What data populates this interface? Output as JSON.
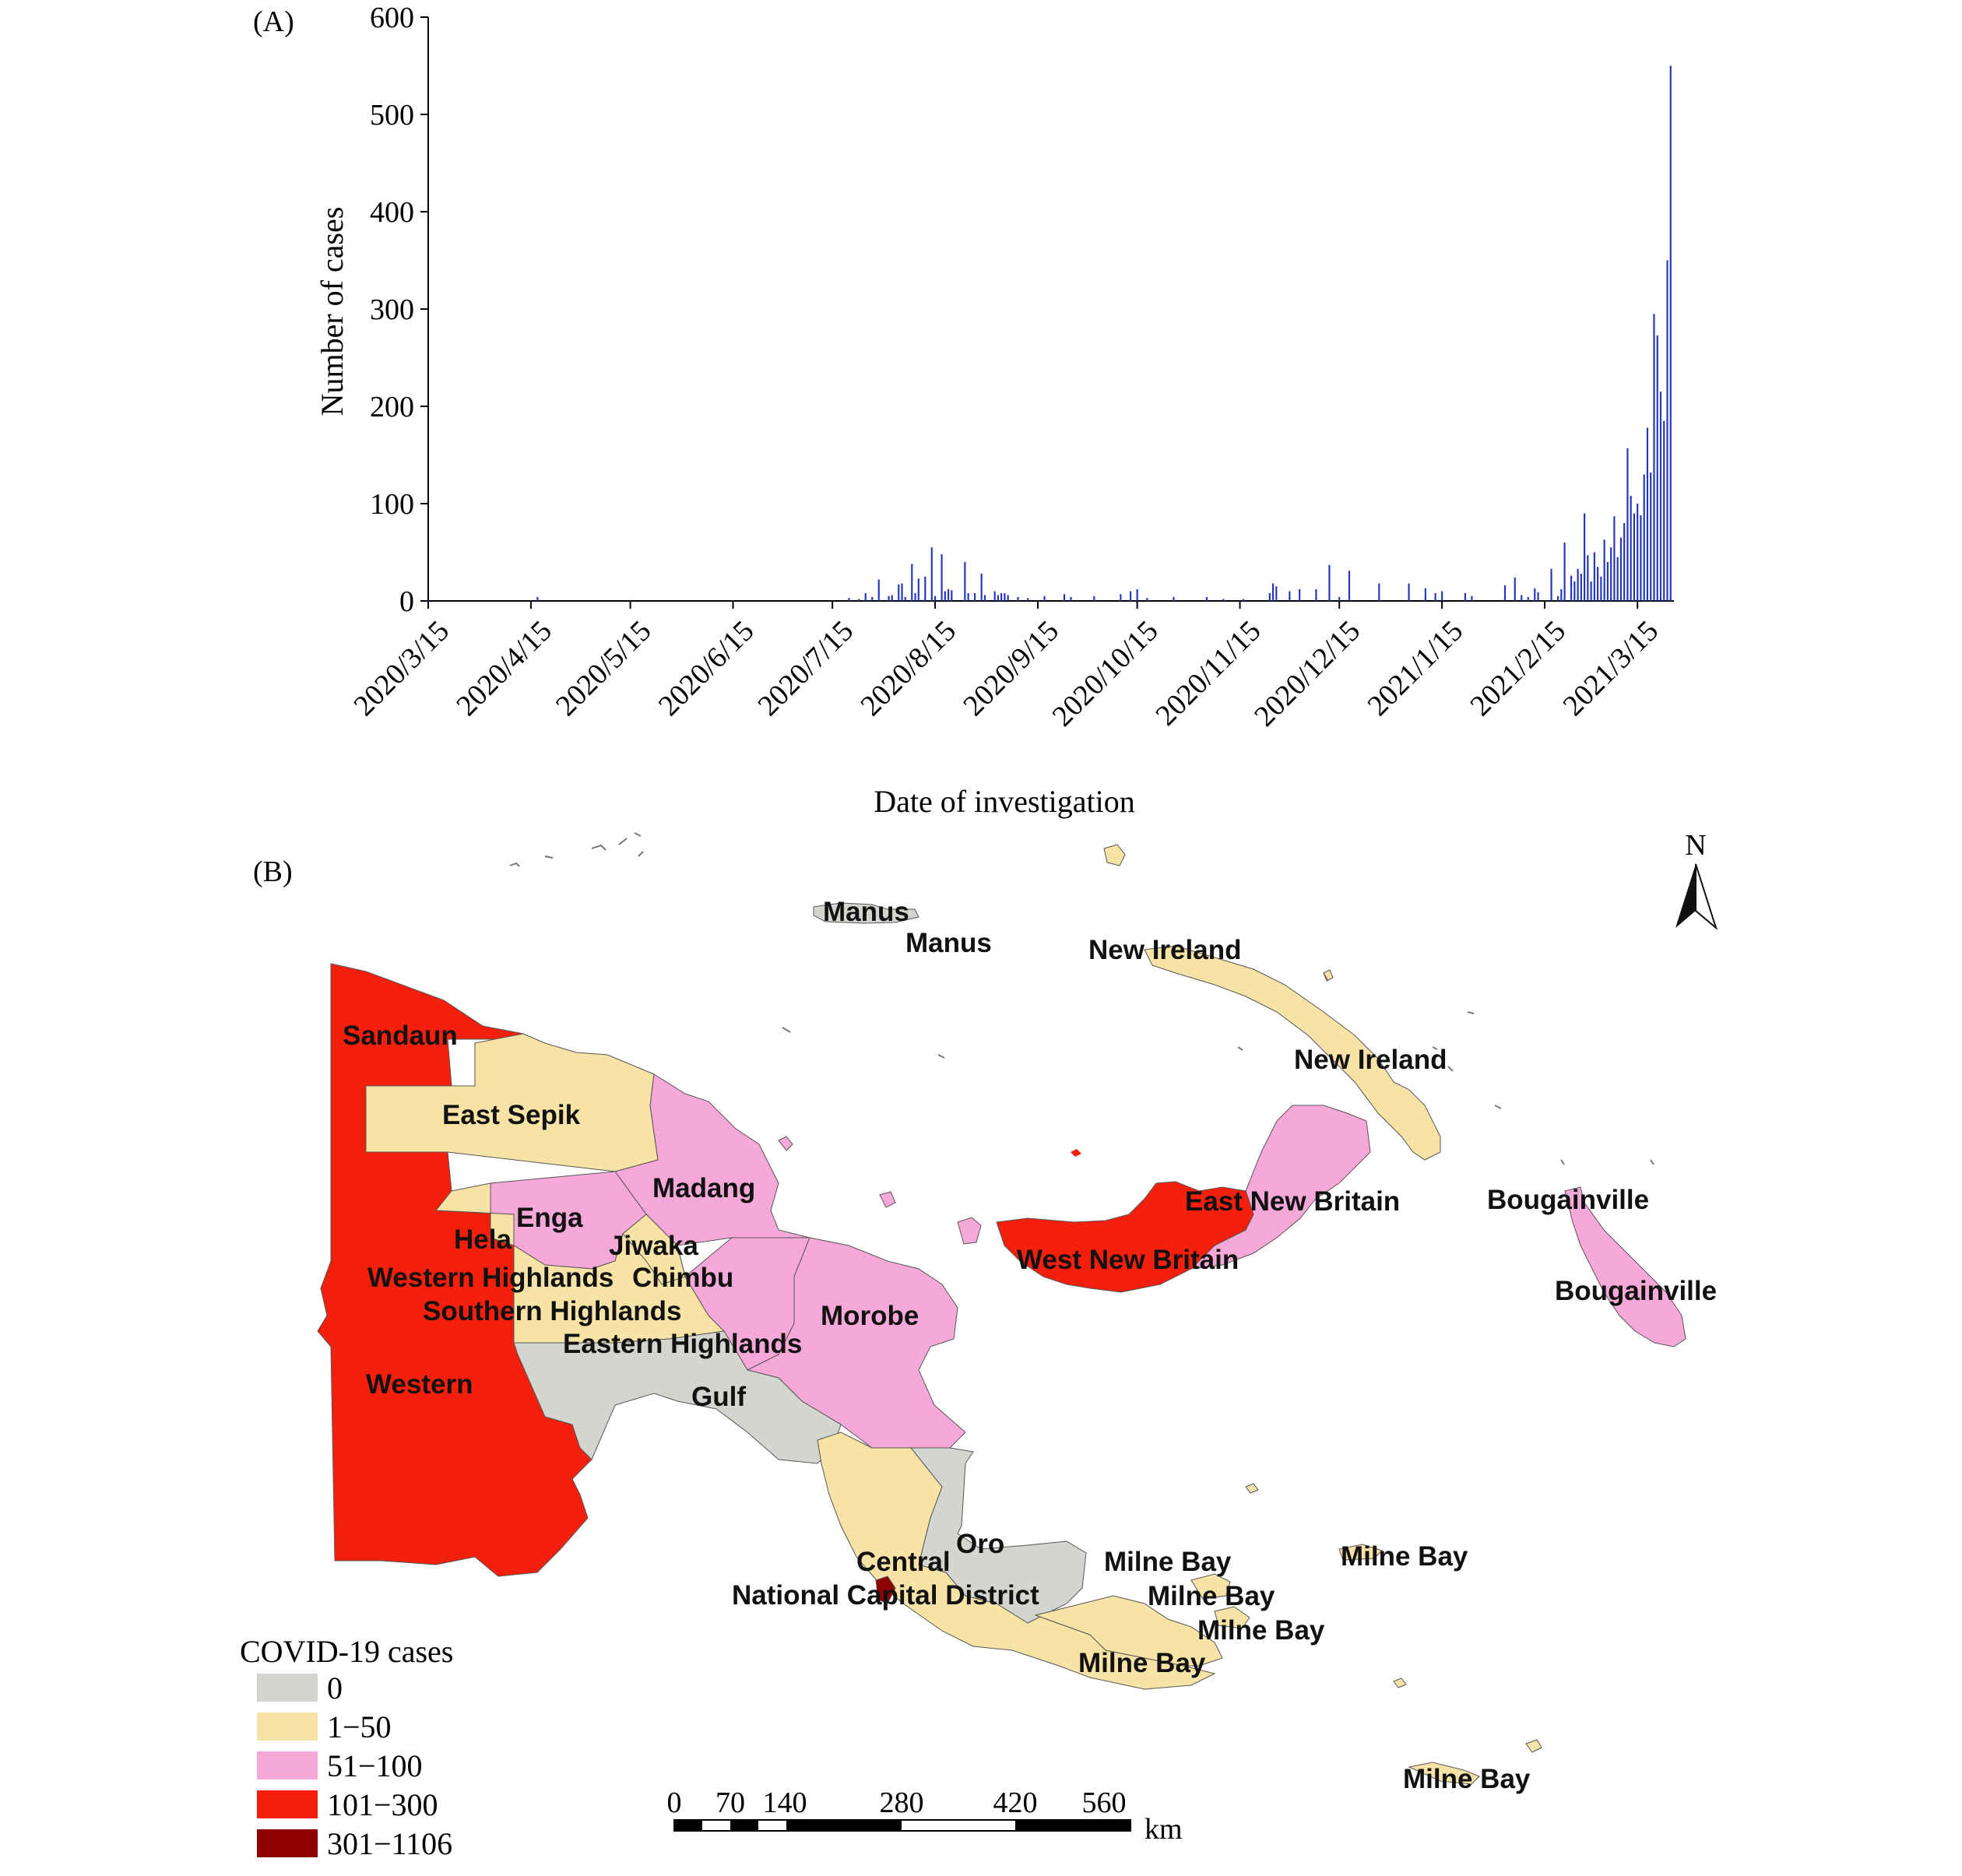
{
  "panel_a": {
    "label": "(A)",
    "chart_data": {
      "type": "bar",
      "xlabel": "Date of investigation",
      "ylabel": "Number of cases",
      "ylim": [
        0,
        600
      ],
      "yticks": [
        0,
        100,
        200,
        300,
        400,
        500,
        600
      ],
      "xticks": [
        "2020/3/15",
        "2020/4/15",
        "2020/5/15",
        "2020/6/15",
        "2020/7/15",
        "2020/8/15",
        "2020/9/15",
        "2020/10/15",
        "2020/11/15",
        "2020/12/15",
        "2021/1/15",
        "2021/2/15",
        "2021/3/15"
      ],
      "x_range": [
        "2020/3/15",
        "2021/3/26"
      ],
      "bar_color": "#2233bb",
      "series": [
        {
          "values": [
            {
              "date": "2020/3/15",
              "cases": 1
            },
            {
              "date": "2020/4/17",
              "cases": 4
            },
            {
              "date": "2020/7/20",
              "cases": 3
            },
            {
              "date": "2020/7/23",
              "cases": 2
            },
            {
              "date": "2020/7/25",
              "cases": 8
            },
            {
              "date": "2020/7/27",
              "cases": 4
            },
            {
              "date": "2020/7/29",
              "cases": 22
            },
            {
              "date": "2020/8/1",
              "cases": 5
            },
            {
              "date": "2020/8/2",
              "cases": 6
            },
            {
              "date": "2020/8/4",
              "cases": 17
            },
            {
              "date": "2020/8/5",
              "cases": 18
            },
            {
              "date": "2020/8/6",
              "cases": 4
            },
            {
              "date": "2020/8/8",
              "cases": 38
            },
            {
              "date": "2020/8/9",
              "cases": 8
            },
            {
              "date": "2020/8/10",
              "cases": 23
            },
            {
              "date": "2020/8/12",
              "cases": 25
            },
            {
              "date": "2020/8/14",
              "cases": 55
            },
            {
              "date": "2020/8/15",
              "cases": 5
            },
            {
              "date": "2020/8/17",
              "cases": 48
            },
            {
              "date": "2020/8/18",
              "cases": 10
            },
            {
              "date": "2020/8/19",
              "cases": 12
            },
            {
              "date": "2020/8/20",
              "cases": 11
            },
            {
              "date": "2020/8/24",
              "cases": 40
            },
            {
              "date": "2020/8/25",
              "cases": 8
            },
            {
              "date": "2020/8/27",
              "cases": 8
            },
            {
              "date": "2020/8/29",
              "cases": 28
            },
            {
              "date": "2020/8/30",
              "cases": 6
            },
            {
              "date": "2020/9/2",
              "cases": 10
            },
            {
              "date": "2020/9/3",
              "cases": 6
            },
            {
              "date": "2020/9/4",
              "cases": 8
            },
            {
              "date": "2020/9/5",
              "cases": 8
            },
            {
              "date": "2020/9/6",
              "cases": 6
            },
            {
              "date": "2020/9/9",
              "cases": 4
            },
            {
              "date": "2020/9/12",
              "cases": 3
            },
            {
              "date": "2020/9/17",
              "cases": 5
            },
            {
              "date": "2020/9/23",
              "cases": 7
            },
            {
              "date": "2020/9/25",
              "cases": 4
            },
            {
              "date": "2020/10/2",
              "cases": 5
            },
            {
              "date": "2020/10/10",
              "cases": 7
            },
            {
              "date": "2020/10/13",
              "cases": 10
            },
            {
              "date": "2020/10/15",
              "cases": 12
            },
            {
              "date": "2020/10/18",
              "cases": 3
            },
            {
              "date": "2020/10/26",
              "cases": 4
            },
            {
              "date": "2020/11/5",
              "cases": 4
            },
            {
              "date": "2020/11/10",
              "cases": 2
            },
            {
              "date": "2020/11/16",
              "cases": 2
            },
            {
              "date": "2020/11/24",
              "cases": 8
            },
            {
              "date": "2020/11/25",
              "cases": 18
            },
            {
              "date": "2020/11/26",
              "cases": 15
            },
            {
              "date": "2020/11/30",
              "cases": 10
            },
            {
              "date": "2020/12/3",
              "cases": 12
            },
            {
              "date": "2020/12/8",
              "cases": 12
            },
            {
              "date": "2020/12/12",
              "cases": 37
            },
            {
              "date": "2020/12/15",
              "cases": 4
            },
            {
              "date": "2020/12/18",
              "cases": 31
            },
            {
              "date": "2020/12/27",
              "cases": 18
            },
            {
              "date": "2021/1/5",
              "cases": 18
            },
            {
              "date": "2021/1/10",
              "cases": 13
            },
            {
              "date": "2021/1/13",
              "cases": 8
            },
            {
              "date": "2021/1/15",
              "cases": 10
            },
            {
              "date": "2021/1/22",
              "cases": 8
            },
            {
              "date": "2021/1/24",
              "cases": 5
            },
            {
              "date": "2021/2/3",
              "cases": 16
            },
            {
              "date": "2021/2/6",
              "cases": 24
            },
            {
              "date": "2021/2/8",
              "cases": 6
            },
            {
              "date": "2021/2/10",
              "cases": 4
            },
            {
              "date": "2021/2/12",
              "cases": 13
            },
            {
              "date": "2021/2/13",
              "cases": 9
            },
            {
              "date": "2021/2/17",
              "cases": 33
            },
            {
              "date": "2021/2/19",
              "cases": 5
            },
            {
              "date": "2021/2/20",
              "cases": 12
            },
            {
              "date": "2021/2/21",
              "cases": 60
            },
            {
              "date": "2021/2/23",
              "cases": 26
            },
            {
              "date": "2021/2/24",
              "cases": 20
            },
            {
              "date": "2021/2/25",
              "cases": 33
            },
            {
              "date": "2021/2/26",
              "cases": 28
            },
            {
              "date": "2021/2/27",
              "cases": 90
            },
            {
              "date": "2021/2/28",
              "cases": 47
            },
            {
              "date": "2021/3/1",
              "cases": 20
            },
            {
              "date": "2021/3/2",
              "cases": 50
            },
            {
              "date": "2021/3/3",
              "cases": 35
            },
            {
              "date": "2021/3/4",
              "cases": 25
            },
            {
              "date": "2021/3/5",
              "cases": 63
            },
            {
              "date": "2021/3/6",
              "cases": 40
            },
            {
              "date": "2021/3/7",
              "cases": 55
            },
            {
              "date": "2021/3/8",
              "cases": 87
            },
            {
              "date": "2021/3/9",
              "cases": 45
            },
            {
              "date": "2021/3/10",
              "cases": 65
            },
            {
              "date": "2021/3/11",
              "cases": 80
            },
            {
              "date": "2021/3/12",
              "cases": 157
            },
            {
              "date": "2021/3/13",
              "cases": 108
            },
            {
              "date": "2021/3/14",
              "cases": 90
            },
            {
              "date": "2021/3/15",
              "cases": 100
            },
            {
              "date": "2021/3/16",
              "cases": 88
            },
            {
              "date": "2021/3/17",
              "cases": 130
            },
            {
              "date": "2021/3/18",
              "cases": 178
            },
            {
              "date": "2021/3/19",
              "cases": 132
            },
            {
              "date": "2021/3/20",
              "cases": 295
            },
            {
              "date": "2021/3/21",
              "cases": 273
            },
            {
              "date": "2021/3/22",
              "cases": 215
            },
            {
              "date": "2021/3/23",
              "cases": 185
            },
            {
              "date": "2021/3/24",
              "cases": 350
            },
            {
              "date": "2021/3/25",
              "cases": 550
            }
          ]
        }
      ]
    }
  },
  "panel_b": {
    "label": "(B)",
    "north_label": "N",
    "legend": {
      "title": "COVID-19 cases",
      "items": [
        {
          "label": "0",
          "color": "#d3d6cf"
        },
        {
          "label": "1−50",
          "color": "#f8e3a6"
        },
        {
          "label": "51−100",
          "color": "#f6a8d8"
        },
        {
          "label": "101−300",
          "color": "#f41f0d"
        },
        {
          "label": "301−1106",
          "color": "#8f0000"
        }
      ]
    },
    "scale_bar": {
      "labels": [
        "0",
        "70",
        "140",
        "280",
        "420",
        "560"
      ],
      "unit": "km"
    },
    "province_labels": [
      "Manus",
      "Manus",
      "New Ireland",
      "New Ireland",
      "Sandaun",
      "East Sepik",
      "Madang",
      "Enga",
      "Hela",
      "Jiwaka",
      "Western Highlands",
      "Chimbu",
      "Southern Highlands",
      "Eastern Highlands",
      "Morobe",
      "Western",
      "Gulf",
      "East New Britain",
      "West New Britain",
      "Bougainville",
      "Bougainville",
      "Oro",
      "Central",
      "National Capital District",
      "Milne Bay",
      "Milne Bay",
      "Milne Bay",
      "Milne Bay",
      "Milne Bay",
      "Milne Bay"
    ]
  }
}
